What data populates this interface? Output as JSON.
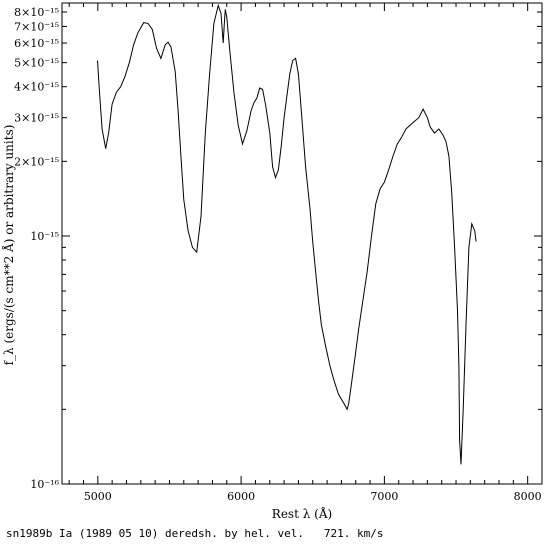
{
  "chart_data": {
    "type": "line",
    "xlabel": "Rest λ (Å)",
    "ylabel": "f_λ (ergs/(s cm**2 Å) or arbitrary units)",
    "xlim": [
      4750,
      8100
    ],
    "ylim": [
      1e-16,
      8.7e-15
    ],
    "yscale": "log",
    "grid": false,
    "x_ticks": [
      5000,
      6000,
      7000,
      8000
    ],
    "x_tick_labels": [
      "5000",
      "6000",
      "7000",
      "8000"
    ],
    "y_ticks": [
      1e-16,
      1e-15,
      2e-15,
      3e-15,
      4e-15,
      5e-15,
      6e-15,
      7e-15,
      8e-15
    ],
    "y_tick_labels": [
      "10⁻¹⁶",
      "10⁻¹⁵",
      "2×10⁻¹⁵",
      "3×10⁻¹⁵",
      "4×10⁻¹⁵",
      "5×10⁻¹⁵",
      "6×10⁻¹⁵",
      "7×10⁻¹⁵",
      "8×10⁻¹⁵"
    ],
    "series": [
      {
        "x": [
          4998,
          5010,
          5030,
          5055,
          5075,
          5100,
          5130,
          5160,
          5190,
          5220,
          5250,
          5280,
          5320,
          5350,
          5380,
          5410,
          5440,
          5470,
          5490,
          5510,
          5540,
          5560,
          5580,
          5600,
          5630,
          5660,
          5690,
          5720,
          5750,
          5780,
          5810,
          5840,
          5860,
          5875,
          5885,
          5890,
          5900,
          5920,
          5950,
          5980,
          6010,
          6040,
          6070,
          6090,
          6110,
          6130,
          6150,
          6170,
          6200,
          6220,
          6240,
          6260,
          6280,
          6300,
          6320,
          6340,
          6360,
          6380,
          6400,
          6420,
          6450,
          6480,
          6500,
          6520,
          6540,
          6560,
          6590,
          6620,
          6650,
          6680,
          6700,
          6720,
          6740,
          6750,
          6760,
          6780,
          6800,
          6820,
          6850,
          6880,
          6910,
          6940,
          6970,
          7000,
          7030,
          7060,
          7090,
          7120,
          7150,
          7180,
          7210,
          7240,
          7270,
          7300,
          7320,
          7350,
          7380,
          7410,
          7430,
          7450,
          7470,
          7490,
          7510,
          7520,
          7525,
          7535,
          7550,
          7570,
          7590,
          7610,
          7630,
          7640
        ],
        "y": [
          5.1e-15,
          3.9e-15,
          2.7e-15,
          2.25e-15,
          2.6e-15,
          3.4e-15,
          3.8e-15,
          4e-15,
          4.4e-15,
          5e-15,
          5.9e-15,
          6.6e-15,
          7.25e-15,
          7.2e-15,
          6.8e-15,
          5.7e-15,
          5.2e-15,
          5.9e-15,
          6.05e-15,
          5.8e-15,
          4.6e-15,
          3.2e-15,
          2.1e-15,
          1.4e-15,
          1.05e-15,
          9e-16,
          8.6e-16,
          1.2e-15,
          2.6e-15,
          4.5e-15,
          7.2e-15,
          8.5e-15,
          7.9e-15,
          6e-15,
          7.5e-15,
          8.2e-15,
          7.6e-15,
          5.7e-15,
          3.8e-15,
          2.8e-15,
          2.35e-15,
          2.65e-15,
          3.2e-15,
          3.45e-15,
          3.6e-15,
          3.95e-15,
          3.9e-15,
          3.4e-15,
          2.6e-15,
          1.9e-15,
          1.72e-15,
          1.85e-15,
          2.3e-15,
          3e-15,
          3.7e-15,
          4.5e-15,
          5.1e-15,
          5.2e-15,
          4.5e-15,
          3.2e-15,
          1.9e-15,
          1.3e-15,
          9.5e-16,
          7.2e-16,
          5.5e-16,
          4.4e-16,
          3.6e-16,
          3e-16,
          2.6e-16,
          2.3e-16,
          2.2e-16,
          2.1e-16,
          2e-16,
          2.1e-16,
          2.3e-16,
          2.8e-16,
          3.4e-16,
          4.2e-16,
          5.5e-16,
          7.2e-16,
          1e-15,
          1.35e-15,
          1.55e-15,
          1.65e-15,
          1.85e-15,
          2.1e-15,
          2.35e-15,
          2.5e-15,
          2.7e-15,
          2.8e-15,
          2.9e-15,
          3e-15,
          3.25e-15,
          3e-15,
          2.75e-15,
          2.6e-15,
          2.7e-15,
          2.55e-15,
          2.4e-15,
          2.1e-15,
          1.5e-15,
          9e-16,
          5e-16,
          3e-16,
          1.5e-16,
          1.2e-16,
          2e-16,
          4.5e-16,
          9e-16,
          1.12e-15,
          1.05e-15,
          9.5e-16
        ]
      }
    ]
  },
  "caption": "sn1989b Ia (1989 05 10) deredsh. by hel. vel.   721. km/s"
}
